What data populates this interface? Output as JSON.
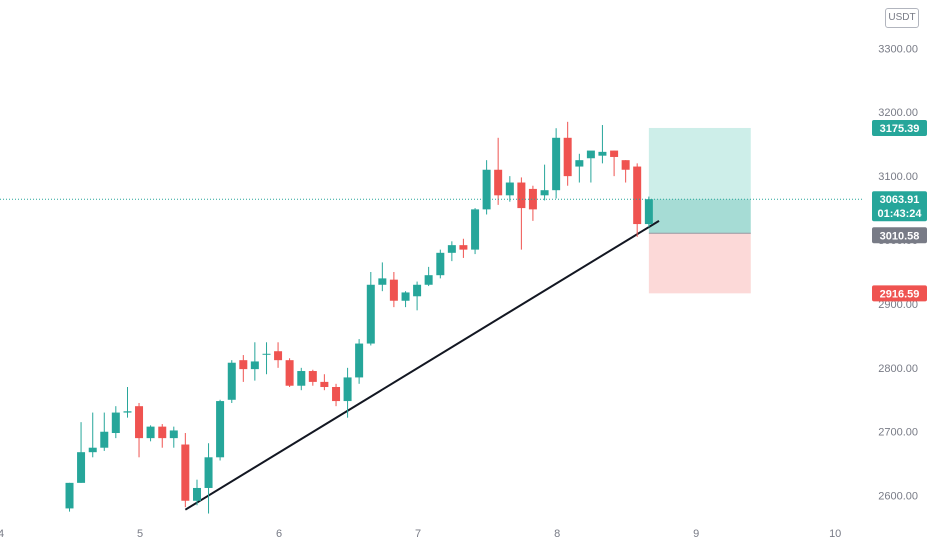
{
  "chart_data": {
    "type": "candlestick",
    "quote_unit": "USDT",
    "xlim": [
      4.0,
      10.2
    ],
    "ylim": [
      2565,
      3360
    ],
    "x_ticks": [
      "4",
      "5",
      "6",
      "7",
      "8",
      "9",
      "10"
    ],
    "y_ticks": [
      "2600.00",
      "2700.00",
      "2800.00",
      "2900.00",
      "3000.00",
      "3100.00",
      "3200.00",
      "3300.00"
    ],
    "colors": {
      "up": "#26a69a",
      "down": "#ef5350",
      "grid_text": "#787b86",
      "target_zone": "#cdeee9",
      "profit_zone": "#a6dcd5",
      "stop_zone": "#fcd9d8",
      "entry_tag": "#787b86",
      "trendline": "#131722"
    },
    "candles": [
      {
        "x": 4.5,
        "o": 2580,
        "h": 2620,
        "l": 2575,
        "c": 2620
      },
      {
        "x": 4.583,
        "o": 2620,
        "h": 2715,
        "l": 2620,
        "c": 2668
      },
      {
        "x": 4.667,
        "o": 2668,
        "h": 2730,
        "l": 2660,
        "c": 2675
      },
      {
        "x": 4.75,
        "o": 2675,
        "h": 2730,
        "l": 2670,
        "c": 2700
      },
      {
        "x": 4.833,
        "o": 2698,
        "h": 2740,
        "l": 2690,
        "c": 2730
      },
      {
        "x": 4.917,
        "o": 2730,
        "h": 2770,
        "l": 2722,
        "c": 2732
      },
      {
        "x": 5.0,
        "o": 2740,
        "h": 2745,
        "l": 2660,
        "c": 2690
      },
      {
        "x": 5.083,
        "o": 2690,
        "h": 2710,
        "l": 2685,
        "c": 2708
      },
      {
        "x": 5.167,
        "o": 2708,
        "h": 2712,
        "l": 2675,
        "c": 2690
      },
      {
        "x": 5.25,
        "o": 2690,
        "h": 2708,
        "l": 2675,
        "c": 2702
      },
      {
        "x": 5.333,
        "o": 2680,
        "h": 2698,
        "l": 2582,
        "c": 2592
      },
      {
        "x": 5.417,
        "o": 2592,
        "h": 2625,
        "l": 2585,
        "c": 2612
      },
      {
        "x": 5.5,
        "o": 2612,
        "h": 2682,
        "l": 2572,
        "c": 2660
      },
      {
        "x": 5.583,
        "o": 2660,
        "h": 2750,
        "l": 2655,
        "c": 2748
      },
      {
        "x": 5.667,
        "o": 2750,
        "h": 2812,
        "l": 2745,
        "c": 2808
      },
      {
        "x": 5.75,
        "o": 2812,
        "h": 2820,
        "l": 2778,
        "c": 2798
      },
      {
        "x": 5.833,
        "o": 2798,
        "h": 2840,
        "l": 2780,
        "c": 2810
      },
      {
        "x": 5.917,
        "o": 2822,
        "h": 2840,
        "l": 2790,
        "c": 2822
      },
      {
        "x": 6.0,
        "o": 2826,
        "h": 2840,
        "l": 2800,
        "c": 2812
      },
      {
        "x": 6.083,
        "o": 2812,
        "h": 2815,
        "l": 2770,
        "c": 2772
      },
      {
        "x": 6.167,
        "o": 2772,
        "h": 2800,
        "l": 2765,
        "c": 2795
      },
      {
        "x": 6.25,
        "o": 2795,
        "h": 2797,
        "l": 2772,
        "c": 2778
      },
      {
        "x": 6.333,
        "o": 2778,
        "h": 2790,
        "l": 2765,
        "c": 2770
      },
      {
        "x": 6.417,
        "o": 2770,
        "h": 2775,
        "l": 2740,
        "c": 2748
      },
      {
        "x": 6.5,
        "o": 2748,
        "h": 2800,
        "l": 2722,
        "c": 2785
      },
      {
        "x": 6.583,
        "o": 2785,
        "h": 2845,
        "l": 2775,
        "c": 2838
      },
      {
        "x": 6.667,
        "o": 2838,
        "h": 2950,
        "l": 2835,
        "c": 2930
      },
      {
        "x": 6.75,
        "o": 2930,
        "h": 2965,
        "l": 2920,
        "c": 2940
      },
      {
        "x": 6.833,
        "o": 2938,
        "h": 2950,
        "l": 2895,
        "c": 2905
      },
      {
        "x": 6.917,
        "o": 2905,
        "h": 2920,
        "l": 2895,
        "c": 2918
      },
      {
        "x": 7.0,
        "o": 2912,
        "h": 2935,
        "l": 2890,
        "c": 2930
      },
      {
        "x": 7.083,
        "o": 2930,
        "h": 2958,
        "l": 2928,
        "c": 2945
      },
      {
        "x": 7.167,
        "o": 2945,
        "h": 2985,
        "l": 2940,
        "c": 2980
      },
      {
        "x": 7.25,
        "o": 2980,
        "h": 2998,
        "l": 2967,
        "c": 2992
      },
      {
        "x": 7.333,
        "o": 2992,
        "h": 3002,
        "l": 2972,
        "c": 2985
      },
      {
        "x": 7.417,
        "o": 2985,
        "h": 3050,
        "l": 2978,
        "c": 3048
      },
      {
        "x": 7.5,
        "o": 3048,
        "h": 3125,
        "l": 3040,
        "c": 3110
      },
      {
        "x": 7.583,
        "o": 3110,
        "h": 3160,
        "l": 3055,
        "c": 3070
      },
      {
        "x": 7.667,
        "o": 3070,
        "h": 3100,
        "l": 3060,
        "c": 3090
      },
      {
        "x": 7.75,
        "o": 3090,
        "h": 3098,
        "l": 2985,
        "c": 3050
      },
      {
        "x": 7.833,
        "o": 3080,
        "h": 3085,
        "l": 3030,
        "c": 3048
      },
      {
        "x": 7.917,
        "o": 3070,
        "h": 3118,
        "l": 3062,
        "c": 3078
      },
      {
        "x": 8.0,
        "o": 3078,
        "h": 3175,
        "l": 3065,
        "c": 3160
      },
      {
        "x": 8.083,
        "o": 3160,
        "h": 3185,
        "l": 3085,
        "c": 3100
      },
      {
        "x": 8.167,
        "o": 3115,
        "h": 3135,
        "l": 3090,
        "c": 3125
      },
      {
        "x": 8.25,
        "o": 3128,
        "h": 3135,
        "l": 3090,
        "c": 3140
      },
      {
        "x": 8.333,
        "o": 3132,
        "h": 3180,
        "l": 3120,
        "c": 3138
      },
      {
        "x": 8.417,
        "o": 3140,
        "h": 3140,
        "l": 3100,
        "c": 3130
      },
      {
        "x": 8.5,
        "o": 3125,
        "h": 3125,
        "l": 3090,
        "c": 3110
      },
      {
        "x": 8.583,
        "o": 3115,
        "h": 3120,
        "l": 3005,
        "c": 3025
      },
      {
        "x": 8.667,
        "o": 3025,
        "h": 3068,
        "l": 3020,
        "c": 3063.91
      }
    ],
    "trendline": {
      "x1": 5.333,
      "y1": 2578,
      "x2": 8.74,
      "y2": 3030
    },
    "position": {
      "x_start": 8.667,
      "x_end": 9.4,
      "entry": 3010.58,
      "target": 3175.39,
      "stop": 2916.59,
      "current": 3063.91
    },
    "price_tags": {
      "target": "3175.39",
      "current": "3063.91",
      "countdown": "01:43:24",
      "entry": "3010.58",
      "stop": "2916.59"
    }
  }
}
